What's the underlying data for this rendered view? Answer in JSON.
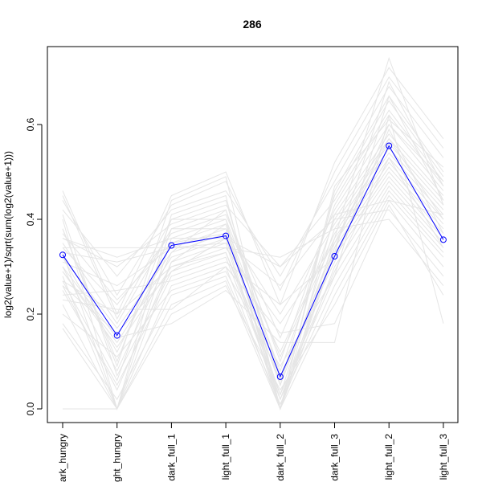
{
  "chart_data": {
    "type": "line",
    "title": "286",
    "xlabel": "",
    "ylabel": "log2(value+1)/sqrt(sum(log2(value+1)))",
    "categories": [
      "dark_hungry",
      "light_hungry",
      "dark_full_1",
      "light_full_1",
      "dark_full_2",
      "dark_full_3",
      "light_full_2",
      "light_full_3"
    ],
    "visible_tick_labels": [
      "ark_hungry",
      "ght_hungry",
      "dark_full_1",
      "light_full_1",
      "dark_full_2",
      "dark_full_3",
      "light_full_2",
      "light_full_3"
    ],
    "ylim": [
      -0.025,
      0.76
    ],
    "yticks": [
      0.0,
      0.2,
      0.4,
      0.6
    ],
    "ytick_labels": [
      "0.0",
      "0.2",
      "0.4",
      "0.6"
    ],
    "grid": false,
    "highlight_series": {
      "color": "#0000ff",
      "marker": "open-circle",
      "values": [
        0.325,
        0.155,
        0.345,
        0.365,
        0.068,
        0.322,
        0.555,
        0.357
      ]
    },
    "background_series": {
      "color": "#e5e5e5",
      "values": [
        [
          0.46,
          0.2,
          0.45,
          0.5,
          0.22,
          0.52,
          0.72,
          0.57
        ],
        [
          0.44,
          0.24,
          0.43,
          0.48,
          0.25,
          0.5,
          0.7,
          0.55
        ],
        [
          0.42,
          0.28,
          0.42,
          0.46,
          0.28,
          0.48,
          0.68,
          0.53
        ],
        [
          0.4,
          0.0,
          0.41,
          0.45,
          0.0,
          0.46,
          0.66,
          0.5
        ],
        [
          0.38,
          0.1,
          0.4,
          0.44,
          0.05,
          0.45,
          0.65,
          0.49
        ],
        [
          0.36,
          0.3,
          0.39,
          0.43,
          0.3,
          0.44,
          0.63,
          0.48
        ],
        [
          0.35,
          0.18,
          0.38,
          0.42,
          0.1,
          0.43,
          0.62,
          0.47
        ],
        [
          0.34,
          0.22,
          0.37,
          0.41,
          0.15,
          0.42,
          0.6,
          0.46
        ],
        [
          0.33,
          0.0,
          0.36,
          0.4,
          0.0,
          0.41,
          0.58,
          0.45
        ],
        [
          0.32,
          0.12,
          0.35,
          0.39,
          0.08,
          0.4,
          0.57,
          0.44
        ],
        [
          0.31,
          0.26,
          0.34,
          0.38,
          0.2,
          0.39,
          0.56,
          0.43
        ],
        [
          0.3,
          0.08,
          0.33,
          0.37,
          0.03,
          0.38,
          0.55,
          0.42
        ],
        [
          0.29,
          0.14,
          0.32,
          0.36,
          0.12,
          0.37,
          0.54,
          0.41
        ],
        [
          0.28,
          0.0,
          0.31,
          0.35,
          0.0,
          0.36,
          0.53,
          0.4
        ],
        [
          0.27,
          0.2,
          0.3,
          0.34,
          0.18,
          0.35,
          0.52,
          0.39
        ],
        [
          0.26,
          0.16,
          0.29,
          0.33,
          0.06,
          0.34,
          0.51,
          0.38
        ],
        [
          0.25,
          0.05,
          0.28,
          0.32,
          0.02,
          0.33,
          0.5,
          0.37
        ],
        [
          0.24,
          0.25,
          0.27,
          0.31,
          0.22,
          0.32,
          0.49,
          0.36
        ],
        [
          0.22,
          0.0,
          0.26,
          0.3,
          0.0,
          0.3,
          0.48,
          0.35
        ],
        [
          0.2,
          0.11,
          0.25,
          0.29,
          0.09,
          0.28,
          0.47,
          0.34
        ],
        [
          0.18,
          0.02,
          0.24,
          0.28,
          0.01,
          0.26,
          0.46,
          0.33
        ],
        [
          0.17,
          0.0,
          0.22,
          0.27,
          0.0,
          0.24,
          0.45,
          0.32
        ],
        [
          0.0,
          0.0,
          0.2,
          0.26,
          0.04,
          0.22,
          0.44,
          0.3
        ],
        [
          0.36,
          0.32,
          0.36,
          0.36,
          0.3,
          0.4,
          0.42,
          0.28
        ],
        [
          0.34,
          0.34,
          0.34,
          0.34,
          0.32,
          0.38,
          0.4,
          0.26
        ],
        [
          0.3,
          0.15,
          0.18,
          0.25,
          0.14,
          0.14,
          0.62,
          0.18
        ],
        [
          0.45,
          0.19,
          0.4,
          0.4,
          0.11,
          0.36,
          0.74,
          0.43
        ],
        [
          0.38,
          0.09,
          0.44,
          0.49,
          0.0,
          0.47,
          0.61,
          0.51
        ],
        [
          0.27,
          0.06,
          0.38,
          0.38,
          0.02,
          0.28,
          0.66,
          0.44
        ],
        [
          0.32,
          0.17,
          0.33,
          0.42,
          0.07,
          0.31,
          0.59,
          0.37
        ],
        [
          0.37,
          0.23,
          0.35,
          0.37,
          0.05,
          0.35,
          0.57,
          0.4
        ],
        [
          0.29,
          0.13,
          0.3,
          0.33,
          0.03,
          0.29,
          0.53,
          0.34
        ],
        [
          0.41,
          0.07,
          0.29,
          0.36,
          0.0,
          0.33,
          0.69,
          0.47
        ],
        [
          0.23,
          0.21,
          0.21,
          0.3,
          0.16,
          0.18,
          0.43,
          0.24
        ],
        [
          0.33,
          0.31,
          0.34,
          0.35,
          0.26,
          0.41,
          0.44,
          0.41
        ],
        [
          0.26,
          0.04,
          0.31,
          0.39,
          0.0,
          0.34,
          0.6,
          0.48
        ]
      ]
    }
  }
}
